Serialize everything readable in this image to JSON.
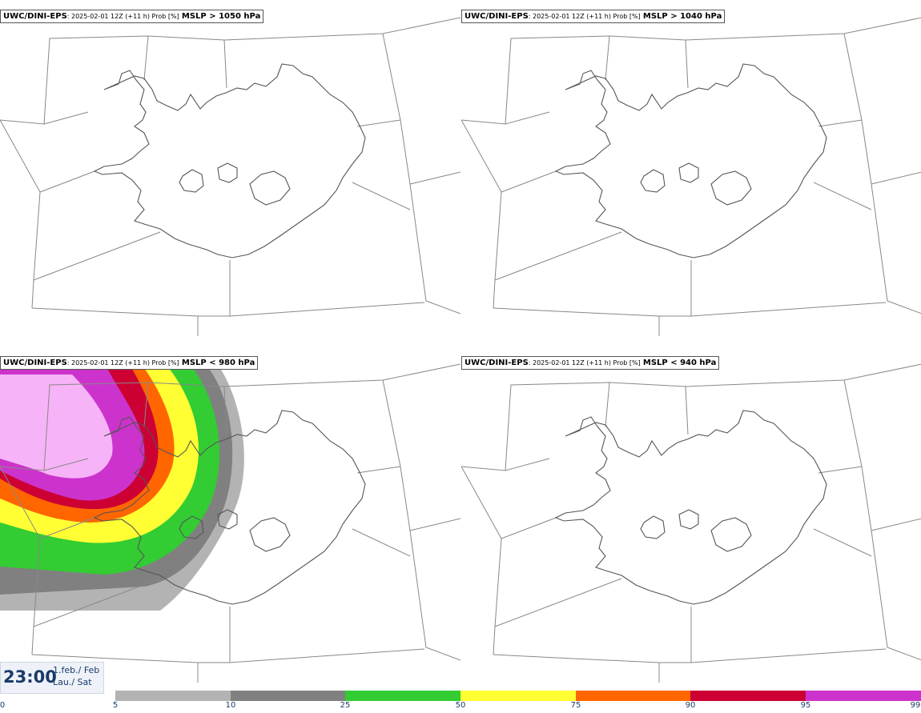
{
  "panels": [
    {
      "source": "UWC/DINI-EPS",
      "run": ": 2025-02-01 12Z (+11 h) Prob [%]",
      "field": "MSLP > 1050 hPa"
    },
    {
      "source": "UWC/DINI-EPS",
      "run": ": 2025-02-01 12Z (+11 h) Prob [%]",
      "field": "MSLP > 1040 hPa"
    },
    {
      "source": "UWC/DINI-EPS",
      "run": ": 2025-02-01 12Z (+11 h) Prob [%]",
      "field": "MSLP < 980 hPa"
    },
    {
      "source": "UWC/DINI-EPS",
      "run": ": 2025-02-01 12Z (+11 h) Prob [%]",
      "field": "MSLP < 940 hPa"
    }
  ],
  "valid_time": {
    "time": "23:00",
    "date_line1": "1.feb./ Feb",
    "date_line2": "Lau./ Sat"
  },
  "colorbar": {
    "ticks": [
      "0",
      "5",
      "10",
      "25",
      "50",
      "75",
      "90",
      "95",
      "99"
    ],
    "colors": [
      "#b3b3b3",
      "#808080",
      "#33cc33",
      "#ffff33",
      "#ff6600",
      "#cc0033",
      "#cc33cc",
      "#f7b3f7"
    ]
  },
  "colors": {
    "coast": "#555555",
    "grid": "#888888",
    "text_accent": "#1a3a6a"
  }
}
